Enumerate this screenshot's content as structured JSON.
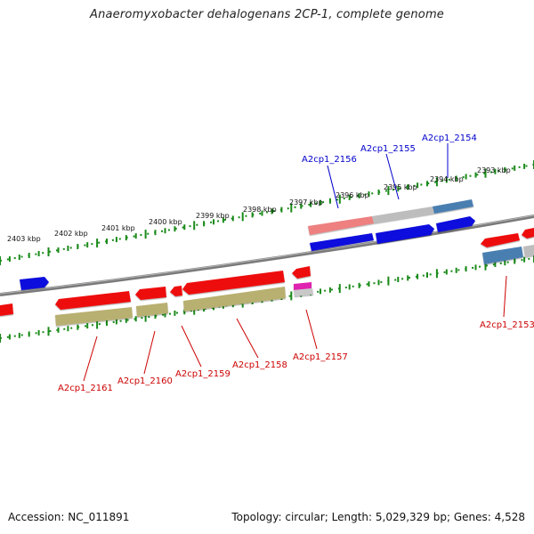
{
  "title": "Anaeromyxobacter dehalogenans 2CP-1, complete genome",
  "footer": {
    "accession": "Accession: NC_011891",
    "summary": "Topology: circular; Length: 5,029,329 bp; Genes: 4,528"
  },
  "colors": {
    "gene_red": "#ee1111",
    "gene_blue": "#1111dd",
    "gene_steel": "#4a7fb0",
    "gene_grey": "#bdbdbd",
    "gene_pink": "#ee8080",
    "gene_olive": "#b8b070",
    "gene_magenta": "#e020b0",
    "label_blue": "#0000cc",
    "label_red": "#cc0000",
    "ruler_green": "#1a8a1a",
    "backbone": "#7a7a7a"
  },
  "ruler_labels": [
    "2393 kbp",
    "2394 kbp",
    "2395 kbp",
    "2396 kbp",
    "2397 kbp",
    "2398 kbp",
    "2399 kbp",
    "2400 kbp",
    "2401 kbp",
    "2402 kbp",
    "2403 kbp"
  ],
  "gene_labels_top": [
    "A2cp1_2156",
    "A2cp1_2155",
    "A2cp1_2154"
  ],
  "gene_labels_bottom": [
    "A2cp1_2161",
    "A2cp1_2160",
    "A2cp1_2159",
    "A2cp1_2158",
    "A2cp1_2157",
    "A2cp1_2153"
  ]
}
